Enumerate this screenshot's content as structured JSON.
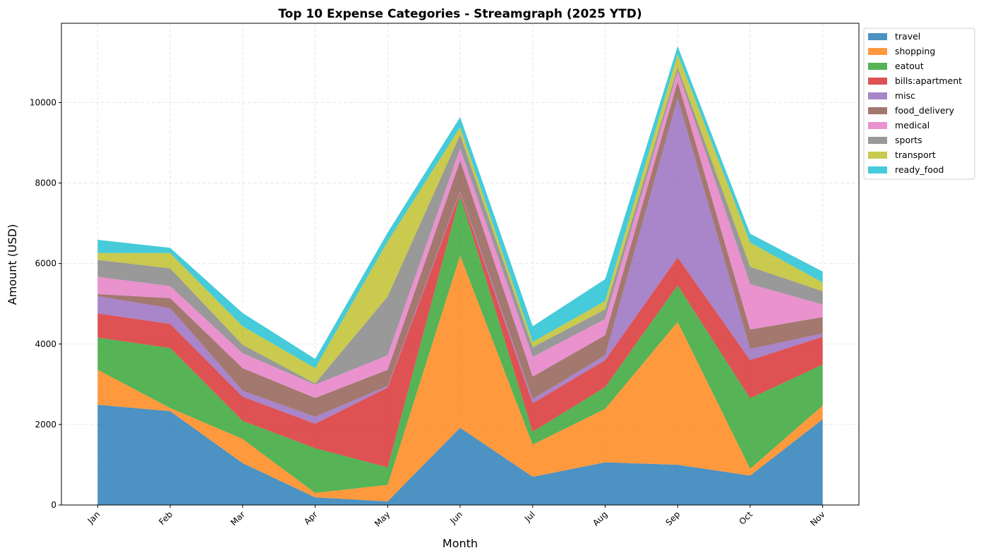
{
  "chart_data": {
    "type": "area",
    "stacked": true,
    "title": "Top 10 Expense Categories - Streamgraph (2025 YTD)",
    "xlabel": "Month",
    "ylabel": "Amount (USD)",
    "categories": [
      "Jan",
      "Feb",
      "Mar",
      "Apr",
      "May",
      "Jun",
      "Jul",
      "Aug",
      "Sep",
      "Oct",
      "Nov"
    ],
    "ylim": [
      0,
      11970
    ],
    "yticks": [
      0,
      2000,
      4000,
      6000,
      8000,
      10000
    ],
    "grid": true,
    "legend_position": "outside-top-right",
    "series": [
      {
        "name": "travel",
        "color": "#1f77b4",
        "values": [
          2490,
          2330,
          1040,
          190,
          90,
          1920,
          700,
          1060,
          1000,
          730,
          2130
        ]
      },
      {
        "name": "shopping",
        "color": "#ff7f0e",
        "values": [
          870,
          80,
          600,
          110,
          410,
          4280,
          800,
          1330,
          3550,
          170,
          340
        ]
      },
      {
        "name": "eatout",
        "color": "#2ca02c",
        "values": [
          800,
          1490,
          450,
          1110,
          435,
          1500,
          320,
          540,
          910,
          1750,
          1020
        ]
      },
      {
        "name": "bills:apartment",
        "color": "#d62728",
        "values": [
          600,
          600,
          600,
          610,
          1985,
          60,
          710,
          670,
          690,
          950,
          690
        ]
      },
      {
        "name": "misc",
        "color": "#9467bd",
        "values": [
          430,
          390,
          150,
          170,
          40,
          40,
          100,
          120,
          3960,
          280,
          80
        ]
      },
      {
        "name": "food_delivery",
        "color": "#8c564b",
        "values": [
          50,
          250,
          560,
          470,
          400,
          760,
          560,
          500,
          410,
          480,
          410
        ]
      },
      {
        "name": "medical",
        "color": "#e377c2",
        "values": [
          430,
          300,
          370,
          330,
          360,
          300,
          490,
          400,
          260,
          1130,
          310
        ]
      },
      {
        "name": "sports",
        "color": "#7f7f7f",
        "values": [
          420,
          440,
          210,
          30,
          1460,
          340,
          240,
          240,
          100,
          430,
          330
        ]
      },
      {
        "name": "transport",
        "color": "#bcbd22",
        "values": [
          170,
          380,
          460,
          380,
          1370,
          190,
          130,
          210,
          320,
          600,
          220
        ]
      },
      {
        "name": "ready_food",
        "color": "#17becf",
        "values": [
          330,
          130,
          330,
          230,
          220,
          250,
          390,
          540,
          200,
          220,
          270
        ]
      }
    ]
  }
}
